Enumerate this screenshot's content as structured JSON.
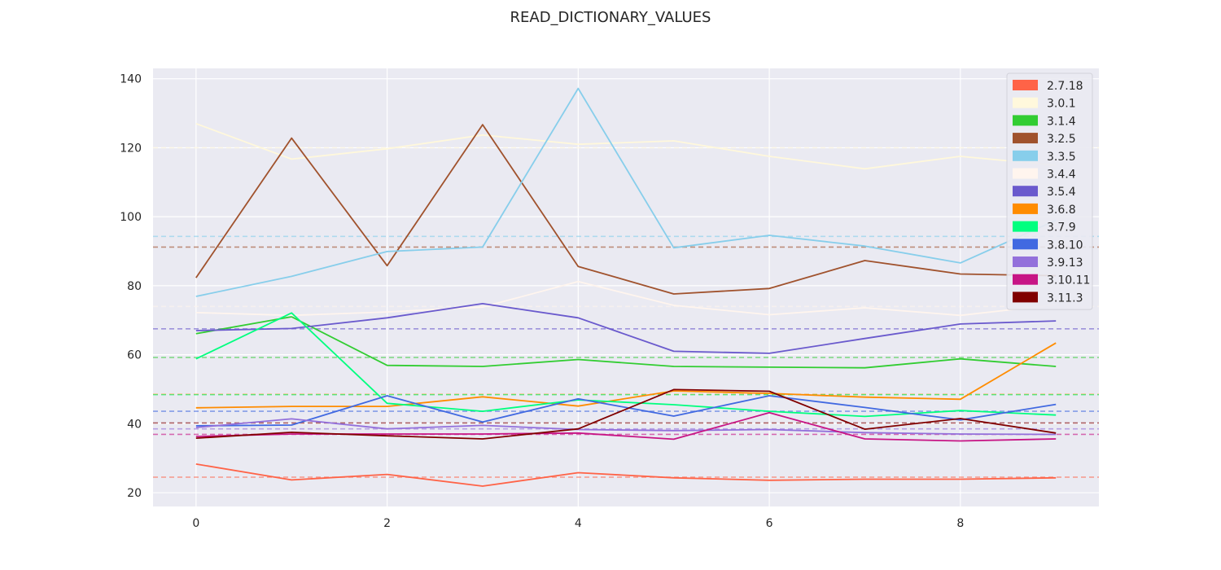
{
  "chart_data": {
    "type": "line",
    "title": "READ_DICTIONARY_VALUES",
    "xlabel": "",
    "ylabel": "",
    "x": [
      0,
      1,
      2,
      3,
      4,
      5,
      6,
      7,
      8,
      9
    ],
    "xlim": [
      -0.45,
      9.45
    ],
    "ylim": [
      16,
      143
    ],
    "xticks": [
      0,
      2,
      4,
      6,
      8
    ],
    "yticks": [
      20,
      40,
      60,
      80,
      100,
      120,
      140
    ],
    "grid": true,
    "legend_position": "top-right",
    "background_color": "#eaeaf2",
    "series": [
      {
        "name": "2.7.18",
        "color": "#ff6347",
        "mean": 24.5,
        "values": [
          28.3,
          23.7,
          25.3,
          21.9,
          25.8,
          24.3,
          23.6,
          23.9,
          23.9,
          24.3
        ]
      },
      {
        "name": "3.0.1",
        "color": "#fff8dc",
        "mean": 120,
        "values": [
          127,
          116.7,
          119.7,
          123.7,
          121,
          122,
          117.5,
          113.9,
          117.5,
          114.9
        ]
      },
      {
        "name": "3.1.4",
        "color": "#32cd32",
        "mean": 59.2,
        "values": [
          66.1,
          71,
          56.9,
          56.6,
          58.6,
          56.6,
          56.4,
          56.2,
          58.8,
          56.6
        ]
      },
      {
        "name": "3.2.5",
        "color": "#a0522d",
        "mean": 91.2,
        "values": [
          82.3,
          122.8,
          85.8,
          126.7,
          85.6,
          77.6,
          79.2,
          87.3,
          83.4,
          82.9
        ]
      },
      {
        "name": "3.3.5",
        "color": "#87ceeb",
        "mean": 94.3,
        "values": [
          76.9,
          82.7,
          89.9,
          91.2,
          137.2,
          91,
          94.6,
          91.5,
          86.6,
          99
        ]
      },
      {
        "name": "3.4.4",
        "color": "#fff5ee",
        "mean": 74,
        "values": [
          72.2,
          71.4,
          72.4,
          73.8,
          81.2,
          74.3,
          71.6,
          73.6,
          71.4,
          74.5
        ]
      },
      {
        "name": "3.5.4",
        "color": "#6a5acd",
        "mean": 67.5,
        "values": [
          67,
          67.6,
          70.7,
          74.8,
          70.7,
          61,
          60.4,
          64.7,
          68.9,
          69.8
        ]
      },
      {
        "name": "3.6.8",
        "color": "#ff8c00",
        "mean": 48.5,
        "values": [
          44.6,
          45,
          45,
          47.8,
          45.1,
          49.5,
          48.8,
          47.7,
          47.1,
          63.4
        ]
      },
      {
        "name": "3.7.9",
        "color": "#00ff7f",
        "mean": 48.4,
        "values": [
          58.8,
          72.1,
          45.9,
          43.6,
          46.9,
          45.5,
          43.6,
          42.1,
          43.8,
          42.5
        ]
      },
      {
        "name": "3.8.10",
        "color": "#4169e1",
        "mean": 43.6,
        "values": [
          39.4,
          39.6,
          48.1,
          40.5,
          47.2,
          42.2,
          48.1,
          44.7,
          41.1,
          45.6
        ]
      },
      {
        "name": "3.9.13",
        "color": "#9370db",
        "mean": 38.5,
        "values": [
          38.9,
          41.4,
          38.5,
          39.5,
          38.3,
          38,
          38.3,
          37.4,
          37,
          36.9
        ]
      },
      {
        "name": "3.10.11",
        "color": "#c71585",
        "mean": 36.9,
        "values": [
          36.3,
          37,
          37,
          37,
          37.3,
          35.5,
          43.2,
          35.6,
          35,
          35.6
        ]
      },
      {
        "name": "3.11.3",
        "color": "#800000",
        "mean": 40.2,
        "values": [
          35.8,
          37.5,
          36.5,
          35.6,
          38.5,
          49.9,
          49.4,
          38.4,
          41.5,
          37.3
        ]
      }
    ]
  }
}
